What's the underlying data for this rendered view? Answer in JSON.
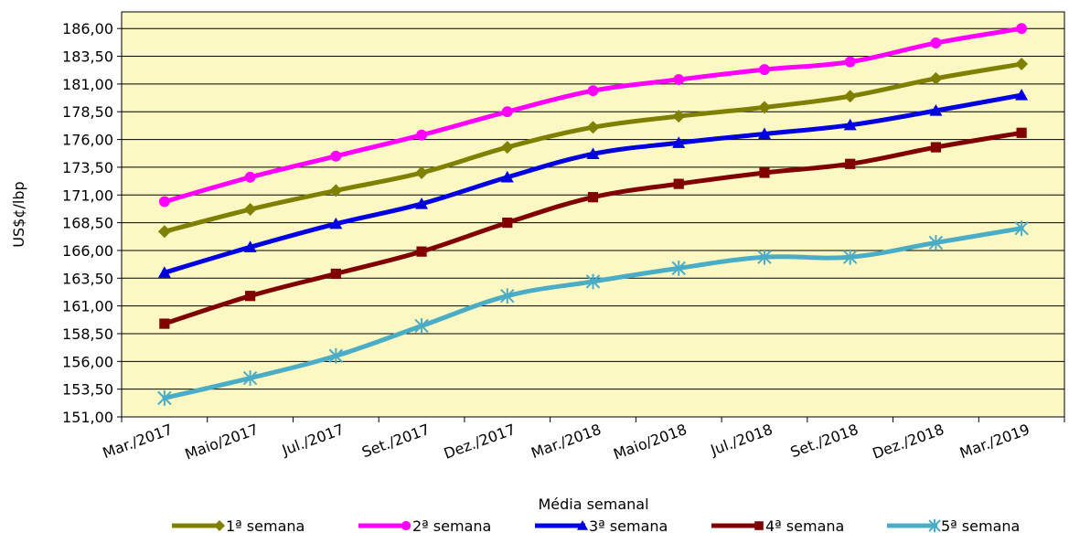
{
  "chart_data": {
    "type": "line",
    "title": "",
    "xlabel": "Média semanal",
    "ylabel": "US$¢/lbp",
    "categories": [
      "Mar./2017",
      "Maio/2017",
      "Jul./2017",
      "Set./2017",
      "Dez./2017",
      "Mar./2018",
      "Maio/2018",
      "Jul./2018",
      "Set./2018",
      "Dez./2018",
      "Mar./2019"
    ],
    "yticks": [
      "151,00",
      "153,50",
      "156,00",
      "158,50",
      "161,00",
      "163,50",
      "166,00",
      "168,50",
      "171,00",
      "173,50",
      "176,00",
      "178,50",
      "181,00",
      "183,50",
      "186,00"
    ],
    "ylim": [
      151,
      187.5
    ],
    "grid": true,
    "legend_position": "bottom",
    "plot_background": "#fbf8c4",
    "series": [
      {
        "name": "1ª semana",
        "color": "#808000",
        "marker": "diamond",
        "values": [
          167.7,
          169.7,
          171.4,
          173.0,
          175.3,
          177.1,
          178.1,
          178.9,
          179.9,
          181.5,
          182.8
        ]
      },
      {
        "name": "2ª semana",
        "color": "#ff00ff",
        "marker": "circle",
        "values": [
          170.4,
          172.6,
          174.5,
          176.4,
          178.5,
          180.4,
          181.4,
          182.3,
          183.0,
          184.7,
          186.0
        ]
      },
      {
        "name": "3ª semana",
        "color": "#0000e0",
        "marker": "triangle",
        "values": [
          164.0,
          166.3,
          168.4,
          170.2,
          172.6,
          174.7,
          175.7,
          176.5,
          177.3,
          178.6,
          180.0
        ]
      },
      {
        "name": "4ª semana",
        "color": "#800000",
        "marker": "square",
        "values": [
          159.4,
          161.9,
          163.9,
          165.9,
          168.5,
          170.8,
          172.0,
          173.0,
          173.8,
          175.3,
          176.6
        ]
      },
      {
        "name": "5ª semana",
        "color": "#4bacc6",
        "marker": "asterisk",
        "values": [
          152.7,
          154.5,
          156.5,
          159.2,
          161.9,
          163.2,
          164.4,
          165.4,
          165.4,
          166.7,
          168.0
        ]
      }
    ]
  }
}
